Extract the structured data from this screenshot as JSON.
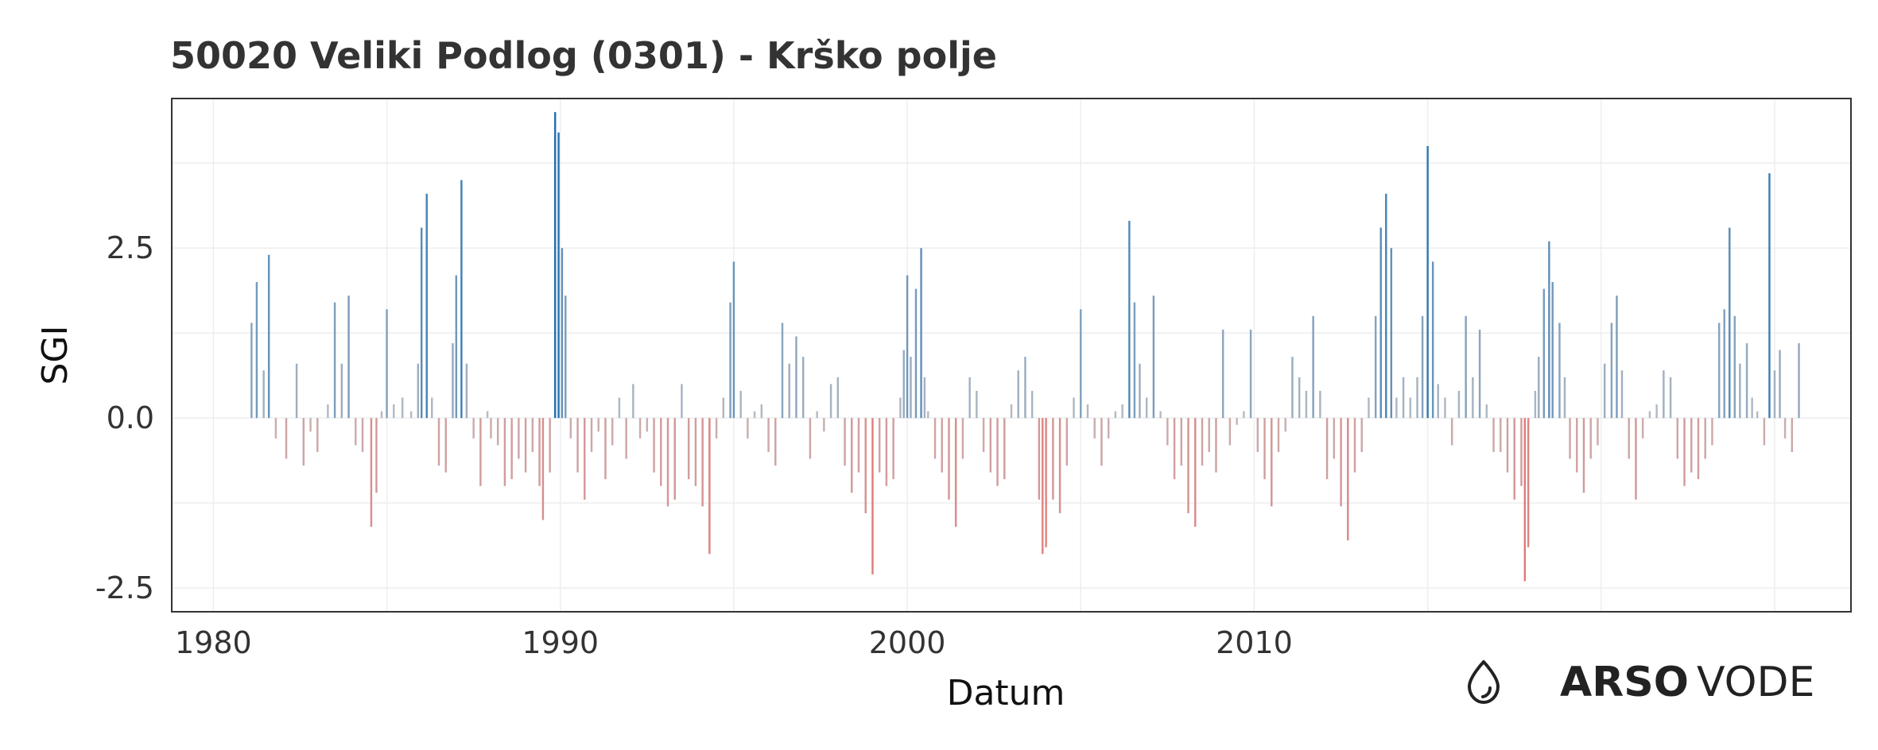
{
  "chart_data": {
    "type": "bar",
    "title": "50020 Veliki Podlog (0301) - Krško polje",
    "xlabel": "Datum",
    "ylabel": "SGI",
    "xlim": [
      1978.8,
      2027.2
    ],
    "ylim": [
      -2.85,
      4.7
    ],
    "x_ticks": [
      1980,
      1990,
      2000,
      2010
    ],
    "x_tick_labels": [
      "1980",
      "1990",
      "2000",
      "2010"
    ],
    "y_ticks": [
      2.5,
      0.0,
      -2.5
    ],
    "y_tick_labels": [
      "2.5",
      "0.0",
      "-2.5"
    ],
    "grid": true,
    "legend": "none",
    "colors": {
      "positive_high": "#1f6fb0",
      "positive_low": "#b8bcc4",
      "negative_low": "#c8b4b4",
      "negative_high": "#e07a78",
      "frame": "#333333",
      "grid": "#eeeeee"
    },
    "anchors": [
      [
        1981.1,
        1.4
      ],
      [
        1981.25,
        2.0
      ],
      [
        1981.45,
        0.7
      ],
      [
        1981.6,
        2.4
      ],
      [
        1981.8,
        -0.3
      ],
      [
        1982.1,
        -0.6
      ],
      [
        1982.4,
        0.8
      ],
      [
        1982.6,
        -0.7
      ],
      [
        1982.8,
        -0.2
      ],
      [
        1983.0,
        -0.5
      ],
      [
        1983.3,
        0.2
      ],
      [
        1983.5,
        1.7
      ],
      [
        1983.7,
        0.8
      ],
      [
        1983.9,
        1.8
      ],
      [
        1984.1,
        -0.4
      ],
      [
        1984.3,
        -0.5
      ],
      [
        1984.55,
        -1.6
      ],
      [
        1984.7,
        -1.1
      ],
      [
        1984.85,
        0.1
      ],
      [
        1985.0,
        1.6
      ],
      [
        1985.2,
        0.2
      ],
      [
        1985.45,
        0.3
      ],
      [
        1985.7,
        0.1
      ],
      [
        1985.9,
        0.8
      ],
      [
        1986.0,
        2.8
      ],
      [
        1986.15,
        3.3
      ],
      [
        1986.3,
        0.3
      ],
      [
        1986.5,
        -0.7
      ],
      [
        1986.7,
        -0.8
      ],
      [
        1986.9,
        1.1
      ],
      [
        1987.0,
        2.1
      ],
      [
        1987.15,
        3.5
      ],
      [
        1987.3,
        0.8
      ],
      [
        1987.5,
        -0.3
      ],
      [
        1987.7,
        -1.0
      ],
      [
        1987.9,
        0.1
      ],
      [
        1988.0,
        -0.3
      ],
      [
        1988.2,
        -0.4
      ],
      [
        1988.4,
        -1.0
      ],
      [
        1988.6,
        -0.9
      ],
      [
        1988.8,
        -0.6
      ],
      [
        1989.0,
        -0.8
      ],
      [
        1989.2,
        -0.5
      ],
      [
        1989.4,
        -1.0
      ],
      [
        1989.5,
        -1.5
      ],
      [
        1989.7,
        -0.8
      ],
      [
        1989.85,
        4.5
      ],
      [
        1989.95,
        4.2
      ],
      [
        1990.05,
        2.5
      ],
      [
        1990.15,
        1.8
      ],
      [
        1990.3,
        -0.3
      ],
      [
        1990.5,
        -0.8
      ],
      [
        1990.7,
        -1.2
      ],
      [
        1990.9,
        -0.5
      ],
      [
        1991.1,
        -0.2
      ],
      [
        1991.3,
        -0.9
      ],
      [
        1991.5,
        -0.4
      ],
      [
        1991.7,
        0.3
      ],
      [
        1991.9,
        -0.6
      ],
      [
        1992.1,
        0.5
      ],
      [
        1992.3,
        -0.3
      ],
      [
        1992.5,
        -0.2
      ],
      [
        1992.7,
        -0.8
      ],
      [
        1992.9,
        -1.0
      ],
      [
        1993.1,
        -1.3
      ],
      [
        1993.3,
        -1.2
      ],
      [
        1993.5,
        0.5
      ],
      [
        1993.7,
        -0.9
      ],
      [
        1993.9,
        -1.0
      ],
      [
        1994.1,
        -1.3
      ],
      [
        1994.3,
        -2.0
      ],
      [
        1994.5,
        -0.3
      ],
      [
        1994.7,
        0.3
      ],
      [
        1994.9,
        1.7
      ],
      [
        1995.0,
        2.3
      ],
      [
        1995.2,
        0.4
      ],
      [
        1995.4,
        -0.3
      ],
      [
        1995.6,
        0.1
      ],
      [
        1995.8,
        0.2
      ],
      [
        1996.0,
        -0.5
      ],
      [
        1996.2,
        -0.7
      ],
      [
        1996.4,
        1.4
      ],
      [
        1996.6,
        0.8
      ],
      [
        1996.8,
        1.2
      ],
      [
        1997.0,
        0.9
      ],
      [
        1997.2,
        -0.6
      ],
      [
        1997.4,
        0.1
      ],
      [
        1997.6,
        -0.2
      ],
      [
        1997.8,
        0.5
      ],
      [
        1998.0,
        0.6
      ],
      [
        1998.2,
        -0.7
      ],
      [
        1998.4,
        -1.1
      ],
      [
        1998.6,
        -0.8
      ],
      [
        1998.8,
        -1.4
      ],
      [
        1999.0,
        -2.3
      ],
      [
        1999.2,
        -0.8
      ],
      [
        1999.4,
        -1.0
      ],
      [
        1999.6,
        -0.9
      ],
      [
        1999.8,
        0.3
      ],
      [
        1999.9,
        1.0
      ],
      [
        2000.0,
        2.1
      ],
      [
        2000.1,
        0.9
      ],
      [
        2000.25,
        1.9
      ],
      [
        2000.4,
        2.5
      ],
      [
        2000.5,
        0.6
      ],
      [
        2000.6,
        0.1
      ],
      [
        2000.8,
        -0.6
      ],
      [
        2001.0,
        -0.8
      ],
      [
        2001.2,
        -1.2
      ],
      [
        2001.4,
        -1.6
      ],
      [
        2001.6,
        -0.6
      ],
      [
        2001.8,
        0.6
      ],
      [
        2002.0,
        0.4
      ],
      [
        2002.2,
        -0.5
      ],
      [
        2002.4,
        -0.8
      ],
      [
        2002.6,
        -1.0
      ],
      [
        2002.8,
        -0.9
      ],
      [
        2003.0,
        0.2
      ],
      [
        2003.2,
        0.7
      ],
      [
        2003.4,
        0.9
      ],
      [
        2003.6,
        0.4
      ],
      [
        2003.8,
        -1.2
      ],
      [
        2003.9,
        -2.0
      ],
      [
        2004.0,
        -1.9
      ],
      [
        2004.2,
        -1.2
      ],
      [
        2004.4,
        -1.4
      ],
      [
        2004.6,
        -0.7
      ],
      [
        2004.8,
        0.3
      ],
      [
        2005.0,
        1.6
      ],
      [
        2005.2,
        0.2
      ],
      [
        2005.4,
        -0.3
      ],
      [
        2005.6,
        -0.7
      ],
      [
        2005.8,
        -0.3
      ],
      [
        2006.0,
        0.1
      ],
      [
        2006.2,
        0.2
      ],
      [
        2006.4,
        2.9
      ],
      [
        2006.55,
        1.7
      ],
      [
        2006.7,
        0.8
      ],
      [
        2006.9,
        0.3
      ],
      [
        2007.1,
        1.8
      ],
      [
        2007.3,
        0.1
      ],
      [
        2007.5,
        -0.4
      ],
      [
        2007.7,
        -0.9
      ],
      [
        2007.9,
        -0.7
      ],
      [
        2008.1,
        -1.4
      ],
      [
        2008.3,
        -1.6
      ],
      [
        2008.5,
        -0.7
      ],
      [
        2008.7,
        -0.5
      ],
      [
        2008.9,
        -0.8
      ],
      [
        2009.1,
        1.3
      ],
      [
        2009.3,
        -0.4
      ],
      [
        2009.5,
        -0.1
      ],
      [
        2009.7,
        0.1
      ],
      [
        2009.9,
        1.3
      ],
      [
        2010.1,
        -0.5
      ],
      [
        2010.3,
        -0.9
      ],
      [
        2010.5,
        -1.3
      ],
      [
        2010.7,
        -0.5
      ],
      [
        2010.9,
        -0.2
      ],
      [
        2011.1,
        0.9
      ],
      [
        2011.3,
        0.6
      ],
      [
        2011.5,
        0.4
      ],
      [
        2011.7,
        1.5
      ],
      [
        2011.9,
        0.4
      ],
      [
        2012.1,
        -0.9
      ],
      [
        2012.3,
        -0.6
      ],
      [
        2012.5,
        -1.3
      ],
      [
        2012.7,
        -1.8
      ],
      [
        2012.9,
        -0.8
      ],
      [
        2013.1,
        -0.5
      ],
      [
        2013.3,
        0.3
      ],
      [
        2013.5,
        1.5
      ],
      [
        2013.65,
        2.8
      ],
      [
        2013.8,
        3.3
      ],
      [
        2013.95,
        2.5
      ],
      [
        2014.1,
        0.3
      ],
      [
        2014.3,
        0.6
      ],
      [
        2014.5,
        0.3
      ],
      [
        2014.7,
        0.6
      ],
      [
        2014.85,
        1.5
      ],
      [
        2015.0,
        4.0
      ],
      [
        2015.15,
        2.3
      ],
      [
        2015.3,
        0.5
      ],
      [
        2015.5,
        0.3
      ],
      [
        2015.7,
        -0.4
      ],
      [
        2015.9,
        0.4
      ],
      [
        2016.1,
        1.5
      ],
      [
        2016.3,
        0.6
      ],
      [
        2016.5,
        1.3
      ],
      [
        2016.7,
        0.2
      ],
      [
        2016.9,
        -0.5
      ],
      [
        2017.1,
        -0.5
      ],
      [
        2017.3,
        -0.8
      ],
      [
        2017.5,
        -1.2
      ],
      [
        2017.7,
        -1.0
      ],
      [
        2017.8,
        -2.4
      ],
      [
        2017.9,
        -1.9
      ],
      [
        2018.1,
        0.4
      ],
      [
        2018.2,
        0.9
      ],
      [
        2018.35,
        1.9
      ],
      [
        2018.5,
        2.6
      ],
      [
        2018.6,
        2.0
      ],
      [
        2018.8,
        1.4
      ],
      [
        2018.95,
        0.6
      ],
      [
        2019.1,
        -0.6
      ],
      [
        2019.3,
        -0.8
      ],
      [
        2019.5,
        -1.1
      ],
      [
        2019.7,
        -0.6
      ],
      [
        2019.9,
        -0.4
      ],
      [
        2020.1,
        0.8
      ],
      [
        2020.3,
        1.4
      ],
      [
        2020.45,
        1.8
      ],
      [
        2020.6,
        0.7
      ],
      [
        2020.8,
        -0.6
      ],
      [
        2021.0,
        -1.2
      ],
      [
        2021.2,
        -0.3
      ],
      [
        2021.4,
        0.1
      ],
      [
        2021.6,
        0.2
      ],
      [
        2021.8,
        0.7
      ],
      [
        2022.0,
        0.6
      ],
      [
        2022.2,
        -0.6
      ],
      [
        2022.4,
        -1.0
      ],
      [
        2022.6,
        -0.8
      ],
      [
        2022.8,
        -0.9
      ],
      [
        2023.0,
        -0.6
      ],
      [
        2023.2,
        -0.4
      ],
      [
        2023.4,
        1.4
      ],
      [
        2023.55,
        1.6
      ],
      [
        2023.7,
        2.8
      ],
      [
        2023.85,
        1.5
      ],
      [
        2024.0,
        0.8
      ],
      [
        2024.2,
        1.1
      ],
      [
        2024.35,
        0.3
      ],
      [
        2024.5,
        0.1
      ],
      [
        2024.7,
        -0.4
      ],
      [
        2024.85,
        3.6
      ],
      [
        2025.0,
        0.7
      ],
      [
        2025.15,
        1.0
      ],
      [
        2025.3,
        -0.3
      ],
      [
        2025.5,
        -0.5
      ],
      [
        2025.7,
        1.1
      ]
    ]
  },
  "brand": {
    "bold": "ARSO",
    "light": "VODE",
    "logo_icon": "water-drop-icon"
  }
}
